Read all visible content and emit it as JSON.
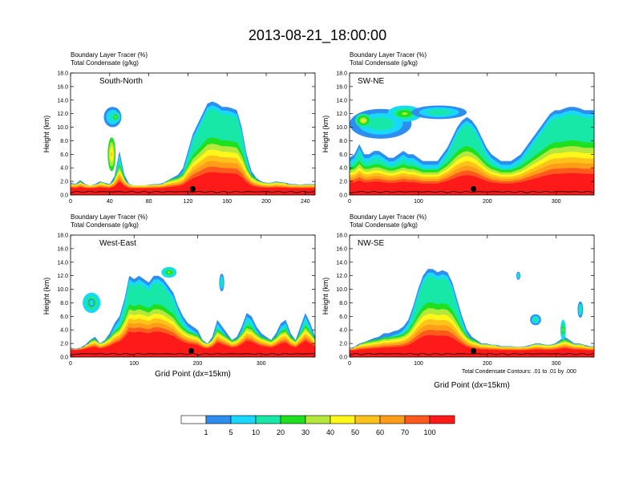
{
  "figure": {
    "title": "2013-08-21_18:00:00",
    "footnote": "Total Condensate Contours: .01 to .01 by .000"
  },
  "colorbar": {
    "colors": [
      "#ffffff",
      "#2d8ef0",
      "#19d8ff",
      "#17e7a7",
      "#1fe01f",
      "#b5e73c",
      "#fff719",
      "#ffc21a",
      "#ff9d18",
      "#ff5a1d",
      "#ff1a1a"
    ],
    "labels": [
      "1",
      "5",
      "10",
      "20",
      "30",
      "40",
      "50",
      "60",
      "70",
      "100"
    ]
  },
  "chart_data": [
    {
      "type": "heatmap",
      "id": "sn",
      "label": "South-North",
      "header": [
        "Boundary Layer Tracer    (%)",
        "Total Condensate    (g/kg)"
      ],
      "ylabel": "Height (km)",
      "xlabel": "",
      "xlim": [
        0,
        250
      ],
      "ylim": [
        0,
        18
      ],
      "xticks": [
        0,
        40,
        80,
        120,
        160,
        200,
        240
      ],
      "yticks": [
        "0.0",
        "2.0",
        "4.0",
        "6.0",
        "8.0",
        "10.0",
        "12.0",
        "14.0",
        "16.0",
        "18.0"
      ],
      "marker_x": 125,
      "top_profile": [
        1.8,
        1.6,
        2.2,
        1.6,
        1.4,
        1.6,
        2.0,
        1.8,
        1.6,
        2.8,
        6.5,
        3.0,
        1.6,
        1.4,
        1.4,
        1.4,
        1.5,
        1.6,
        1.6,
        1.8,
        2.2,
        2.6,
        3.0,
        4.0,
        6.5,
        9.0,
        10.5,
        12.0,
        13.5,
        13.8,
        13.5,
        13.0,
        13.0,
        12.8,
        12.5,
        10.0,
        6.0,
        3.5,
        2.5,
        2.0,
        1.8,
        1.8,
        2.0,
        1.9,
        1.8,
        1.6,
        1.6,
        1.5,
        1.6,
        1.6,
        1.6
      ],
      "level_scale": 1.0,
      "detached": [
        {
          "x": 43,
          "y": 11.5,
          "rx": 9,
          "ry": 1.5,
          "level": 1
        },
        {
          "x": 46,
          "y": 11.5,
          "rx": 5,
          "ry": 0.8,
          "level": 2
        },
        {
          "x": 42,
          "y": 6.0,
          "rx": 4,
          "ry": 2.5,
          "level": 4
        }
      ]
    },
    {
      "type": "heatmap",
      "id": "swne",
      "label": "SW-NE",
      "header": [
        "Boundary Layer Tracer    (%)",
        "Total Condensate    (g/kg)"
      ],
      "ylabel": "Height (km)",
      "xlabel": "",
      "xlim": [
        0,
        355
      ],
      "ylim": [
        0,
        18
      ],
      "xticks": [
        0,
        100,
        200,
        300
      ],
      "yticks": [
        "0.0",
        "2.0",
        "4.0",
        "6.0",
        "8.0",
        "10.0",
        "12.0",
        "14.0",
        "16.0",
        "18.0"
      ],
      "marker_x": 180,
      "top_profile": [
        5.5,
        6.0,
        7.5,
        6.0,
        6.0,
        6.5,
        6.5,
        6.0,
        5.5,
        5.5,
        6.0,
        6.5,
        6.0,
        6.0,
        5.5,
        5.0,
        5.0,
        5.0,
        5.0,
        6.0,
        7.0,
        8.5,
        10.0,
        11.0,
        11.5,
        11.0,
        10.0,
        8.5,
        7.0,
        6.0,
        5.5,
        5.0,
        5.0,
        5.0,
        5.5,
        6.0,
        7.0,
        8.0,
        9.0,
        10.0,
        11.0,
        12.0,
        12.5,
        12.5,
        12.8,
        13.0,
        13.0,
        12.8,
        12.5,
        12.5,
        12.5
      ],
      "level_scale": 1.0,
      "detached": [
        {
          "x": 45,
          "y": 10.5,
          "rx": 45,
          "ry": 2.2,
          "level": 1
        },
        {
          "x": 80,
          "y": 12.0,
          "rx": 25,
          "ry": 1.2,
          "level": 2
        },
        {
          "x": 130,
          "y": 12.2,
          "rx": 40,
          "ry": 1.0,
          "level": 1
        },
        {
          "x": 20,
          "y": 11.0,
          "rx": 12,
          "ry": 1.0,
          "level": 3
        }
      ]
    },
    {
      "type": "heatmap",
      "id": "we",
      "label": "West-East",
      "header": [
        "Boundary Layer Tracer    (%)",
        "Total Condensate    (g/kg)"
      ],
      "ylabel": "Height (km)",
      "xlabel": "Grid Point (dx=15km)",
      "xlim": [
        0,
        385
      ],
      "ylim": [
        0,
        18
      ],
      "xticks": [
        0,
        100,
        200,
        300
      ],
      "yticks": [
        "0.0",
        "2.0",
        "4.0",
        "6.0",
        "8.0",
        "10.0",
        "12.0",
        "14.0",
        "16.0",
        "18.0"
      ],
      "marker_x": 190,
      "top_profile": [
        1.4,
        1.2,
        1.4,
        1.8,
        2.5,
        3.0,
        2.0,
        2.5,
        3.5,
        5.0,
        6.0,
        8.5,
        12.0,
        11.5,
        12.0,
        11.5,
        11.0,
        12.0,
        12.0,
        11.5,
        10.5,
        9.5,
        7.5,
        6.0,
        5.0,
        4.5,
        4.0,
        2.5,
        2.0,
        3.0,
        5.5,
        4.5,
        3.5,
        2.5,
        3.0,
        4.5,
        6.5,
        6.0,
        4.5,
        3.5,
        3.0,
        2.5,
        3.5,
        5.0,
        5.5,
        3.5,
        2.5,
        4.5,
        6.5,
        5.0,
        3.0
      ],
      "level_scale": 0.9,
      "detached": [
        {
          "x": 33,
          "y": 8.0,
          "rx": 14,
          "ry": 1.5,
          "level": 2
        },
        {
          "x": 33,
          "y": 8.0,
          "rx": 5,
          "ry": 0.6,
          "level": 1
        },
        {
          "x": 155,
          "y": 12.5,
          "rx": 12,
          "ry": 0.8,
          "level": 2
        },
        {
          "x": 238,
          "y": 11.0,
          "rx": 4,
          "ry": 1.3,
          "level": 1
        }
      ]
    },
    {
      "type": "heatmap",
      "id": "nwse",
      "label": "NW-SE",
      "header": [
        "Boundary Layer Tracer    (%)",
        "Total Condensate    (g/kg)"
      ],
      "ylabel": "Height (km)",
      "xlabel": "Grid Point (dx=15km)",
      "xlim": [
        0,
        355
      ],
      "ylim": [
        0,
        18
      ],
      "xticks": [
        0,
        100,
        200,
        300
      ],
      "yticks": [
        "0.0",
        "2.0",
        "4.0",
        "6.0",
        "8.0",
        "10.0",
        "12.0",
        "14.0",
        "16.0",
        "18.0"
      ],
      "marker_x": 180,
      "top_profile": [
        1.3,
        1.5,
        2.0,
        2.2,
        2.5,
        2.8,
        3.0,
        3.5,
        3.5,
        3.8,
        4.0,
        4.5,
        5.5,
        7.5,
        10.0,
        12.0,
        13.0,
        13.0,
        12.5,
        12.8,
        12.5,
        11.0,
        8.5,
        6.0,
        4.0,
        3.0,
        2.5,
        2.0,
        2.0,
        1.8,
        1.8,
        1.6,
        1.6,
        1.6,
        1.5,
        1.5,
        1.6,
        1.8,
        2.0,
        2.0,
        1.8,
        1.8,
        2.0,
        2.5,
        3.0,
        2.5,
        2.0,
        2.0,
        1.8,
        1.6,
        1.6
      ],
      "level_scale": 1.0,
      "detached": [
        {
          "x": 270,
          "y": 5.5,
          "rx": 8,
          "ry": 0.8,
          "level": 1
        },
        {
          "x": 310,
          "y": 4.0,
          "rx": 4,
          "ry": 1.5,
          "level": 2
        },
        {
          "x": 245,
          "y": 12.0,
          "rx": 3,
          "ry": 0.6,
          "level": 1
        },
        {
          "x": 335,
          "y": 7.0,
          "rx": 4,
          "ry": 1.2,
          "level": 1
        }
      ]
    }
  ]
}
